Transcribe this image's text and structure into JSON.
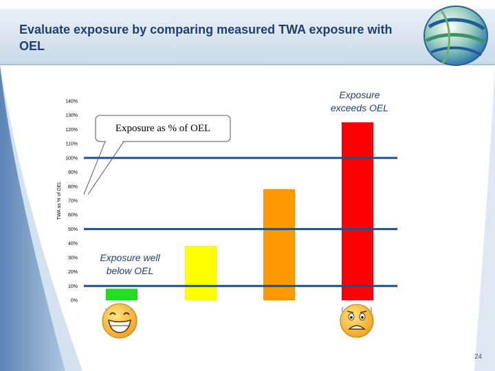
{
  "slide": {
    "title": "Evaluate exposure by comparing measured TWA exposure with OEL",
    "page_number": "24"
  },
  "annotations": {
    "exceeds": [
      "Exposure",
      "exceeds OEL"
    ],
    "below": [
      "Exposure well",
      "below OEL"
    ],
    "callout": "Exposure as % of OEL"
  },
  "icons": {
    "happy_face": "laughing-face-icon",
    "worried_face": "worried-face-icon",
    "logo": "globe-logo-icon"
  },
  "chart_data": {
    "type": "bar",
    "title": "",
    "ylabel": "TWA as % of OEL",
    "xlabel": "",
    "ylim": [
      0,
      140
    ],
    "y_ticks": [
      "0%",
      "10%",
      "20%",
      "30%",
      "40%",
      "50%",
      "60%",
      "70%",
      "80%",
      "90%",
      "100%",
      "110%",
      "120%",
      "130%",
      "140%"
    ],
    "values": [
      8,
      38,
      78,
      125
    ],
    "colors": [
      "#22dd22",
      "#ffff00",
      "#ff9900",
      "#ff0000"
    ],
    "reference_lines": [
      10,
      50,
      100
    ],
    "reference_line_color": "#1f4f8a",
    "grid": false
  }
}
